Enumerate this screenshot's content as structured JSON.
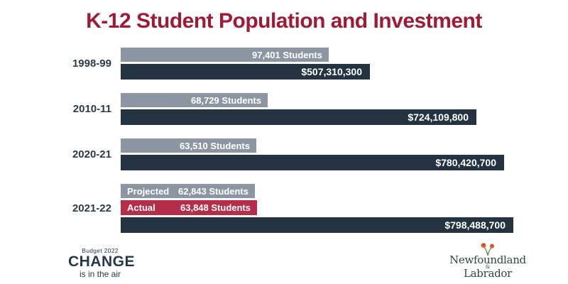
{
  "title": "K-12 Student Population and Investment",
  "chart_data": {
    "type": "bar",
    "orientation": "horizontal",
    "title": "K-12 Student Population and Investment",
    "categories": [
      "1998-99",
      "2010-11",
      "2020-21",
      "2021-22"
    ],
    "series": [
      {
        "name": "Students (Projected for 2021-22)",
        "values": [
          97401,
          68729,
          63510,
          62843
        ]
      },
      {
        "name": "Students (Actual)",
        "values": [
          null,
          null,
          null,
          63848
        ]
      },
      {
        "name": "Investment ($)",
        "values": [
          507310300,
          724109800,
          780420700,
          798488700
        ]
      }
    ],
    "grid": false,
    "legend_position": "none",
    "annotations": [
      "Projected",
      "Actual"
    ]
  },
  "groups": [
    {
      "year": "1998-99",
      "bars": [
        {
          "type": "students",
          "label": "97,401 Students",
          "value": 97401
        },
        {
          "type": "investment",
          "label": "$507,310,300",
          "value": 507310300
        }
      ]
    },
    {
      "year": "2010-11",
      "bars": [
        {
          "type": "students",
          "label": "68,729 Students",
          "value": 68729
        },
        {
          "type": "investment",
          "label": "$724,109,800",
          "value": 724109800
        }
      ]
    },
    {
      "year": "2020-21",
      "bars": [
        {
          "type": "students",
          "label": "63,510 Students",
          "value": 63510
        },
        {
          "type": "investment",
          "label": "$780,420,700",
          "value": 780420700
        }
      ]
    },
    {
      "year": "2021-22",
      "bars": [
        {
          "type": "students",
          "prefix": "Projected",
          "label": "62,843 Students",
          "value": 62843
        },
        {
          "type": "students-actual",
          "prefix": "Actual",
          "label": "63,848 Students",
          "value": 63848
        },
        {
          "type": "investment",
          "label": "$798,488,700",
          "value": 798488700
        }
      ]
    }
  ],
  "footer": {
    "budget_label": "Budget 2022",
    "change_title": "CHANGE",
    "change_tagline": "is in the air",
    "logo": {
      "line1": "Newfoundland",
      "ampersand": "&",
      "line2": "Labrador"
    }
  },
  "colors": {
    "title": "#9E1B36",
    "students_bar": "#8C95A2",
    "students_actual_bar": "#B42E4A",
    "investment_bar": "#24333F",
    "bar_text": "#FFFFFF",
    "category_text": "#2C3A49",
    "footer_text": "#25394A",
    "logo_text": "#2B4A3C",
    "logo_flower": "#E05A2B",
    "logo_stem": "#4E7A43"
  }
}
